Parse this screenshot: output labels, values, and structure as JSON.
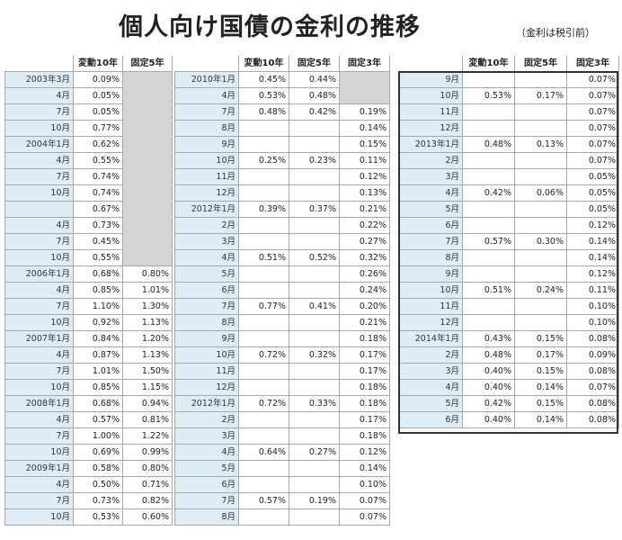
{
  "title": "個人向け国債の金利の推移",
  "note": "（金利は税引前）",
  "headers": {
    "t1": [
      "変動10年",
      "固定5年"
    ],
    "t2": [
      "変動10年",
      "固定5年",
      "固定3年"
    ],
    "t3": [
      "変動10年",
      "固定5年",
      "固定3年"
    ]
  },
  "tables": [
    {
      "columns": 2,
      "rows": [
        {
          "label": "2003年3月",
          "values": [
            "0.09%",
            ""
          ]
        },
        {
          "label": "4月",
          "values": [
            "0.05%",
            ""
          ]
        },
        {
          "label": "7月",
          "values": [
            "0.05%",
            ""
          ]
        },
        {
          "label": "10月",
          "values": [
            "0.77%",
            ""
          ]
        },
        {
          "label": "2004年1月",
          "values": [
            "0.62%",
            ""
          ]
        },
        {
          "label": "4月",
          "values": [
            "0.55%",
            ""
          ]
        },
        {
          "label": "7月",
          "values": [
            "0.74%",
            ""
          ]
        },
        {
          "label": "10月",
          "values": [
            "0.74%",
            ""
          ]
        },
        {
          "label": "",
          "values": [
            "0.67%",
            ""
          ]
        },
        {
          "label": "4月",
          "values": [
            "0.73%",
            ""
          ]
        },
        {
          "label": "7月",
          "values": [
            "0.45%",
            ""
          ]
        },
        {
          "label": "10月",
          "values": [
            "0.55%",
            ""
          ]
        },
        {
          "label": "2006年1月",
          "values": [
            "0.68%",
            "0.80%"
          ]
        },
        {
          "label": "4月",
          "values": [
            "0.85%",
            "1.01%"
          ]
        },
        {
          "label": "7月",
          "values": [
            "1.10%",
            "1.30%"
          ]
        },
        {
          "label": "10月",
          "values": [
            "0.92%",
            "1.13%"
          ]
        },
        {
          "label": "2007年1月",
          "values": [
            "0.84%",
            "1.20%"
          ]
        },
        {
          "label": "4月",
          "values": [
            "0.87%",
            "1.13%"
          ]
        },
        {
          "label": "7月",
          "values": [
            "1.01%",
            "1.50%"
          ]
        },
        {
          "label": "10月",
          "values": [
            "0.85%",
            "1.15%"
          ]
        },
        {
          "label": "2008年1月",
          "values": [
            "0.68%",
            "0.94%"
          ]
        },
        {
          "label": "4月",
          "values": [
            "0.57%",
            "0.81%"
          ]
        },
        {
          "label": "7月",
          "values": [
            "1.00%",
            "1.22%"
          ]
        },
        {
          "label": "10月",
          "values": [
            "0.69%",
            "0.99%"
          ]
        },
        {
          "label": "2009年1月",
          "values": [
            "0.58%",
            "0.80%"
          ]
        },
        {
          "label": "4月",
          "values": [
            "0.50%",
            "0.71%"
          ]
        },
        {
          "label": "7月",
          "values": [
            "0.73%",
            "0.82%"
          ]
        },
        {
          "label": "10月",
          "values": [
            "0.53%",
            "0.60%"
          ]
        }
      ]
    },
    {
      "columns": 3,
      "rows": [
        {
          "label": "2010年1月",
          "values": [
            "0.45%",
            "0.44%",
            ""
          ]
        },
        {
          "label": "4月",
          "values": [
            "0.53%",
            "0.48%",
            ""
          ]
        },
        {
          "label": "7月",
          "values": [
            "0.48%",
            "0.42%",
            "0.19%"
          ]
        },
        {
          "label": "8月",
          "values": [
            "",
            "",
            "0.14%"
          ]
        },
        {
          "label": "9月",
          "values": [
            "",
            "",
            "0.15%"
          ]
        },
        {
          "label": "10月",
          "values": [
            "0.25%",
            "0.23%",
            "0.11%"
          ]
        },
        {
          "label": "11月",
          "values": [
            "",
            "",
            "0.12%"
          ]
        },
        {
          "label": "12月",
          "values": [
            "",
            "",
            "0.13%"
          ]
        },
        {
          "label": "2012年1月",
          "values": [
            "0.39%",
            "0.37%",
            "0.21%"
          ]
        },
        {
          "label": "2月",
          "values": [
            "",
            "",
            "0.22%"
          ]
        },
        {
          "label": "3月",
          "values": [
            "",
            "",
            "0.27%"
          ]
        },
        {
          "label": "4月",
          "values": [
            "0.51%",
            "0.52%",
            "0.32%"
          ]
        },
        {
          "label": "5月",
          "values": [
            "",
            "",
            "0.26%"
          ]
        },
        {
          "label": "6月",
          "values": [
            "",
            "",
            "0.24%"
          ]
        },
        {
          "label": "7月",
          "values": [
            "0.77%",
            "0.41%",
            "0.20%"
          ]
        },
        {
          "label": "8月",
          "values": [
            "",
            "",
            "0.21%"
          ]
        },
        {
          "label": "9月",
          "values": [
            "",
            "",
            "0.18%"
          ]
        },
        {
          "label": "10月",
          "values": [
            "0.72%",
            "0.32%",
            "0.17%"
          ]
        },
        {
          "label": "11月",
          "values": [
            "",
            "",
            "0.17%"
          ]
        },
        {
          "label": "12月",
          "values": [
            "",
            "",
            "0.18%"
          ]
        },
        {
          "label": "2012年1月",
          "values": [
            "0.72%",
            "0.33%",
            "0.18%"
          ]
        },
        {
          "label": "2月",
          "values": [
            "",
            "",
            "0.17%"
          ]
        },
        {
          "label": "3月",
          "values": [
            "",
            "",
            "0.18%"
          ]
        },
        {
          "label": "4月",
          "values": [
            "0.64%",
            "0.27%",
            "0.12%"
          ]
        },
        {
          "label": "5月",
          "values": [
            "",
            "",
            "0.14%"
          ]
        },
        {
          "label": "6月",
          "values": [
            "",
            "",
            "0.10%"
          ]
        },
        {
          "label": "7月",
          "values": [
            "0.57%",
            "0.19%",
            "0.07%"
          ]
        },
        {
          "label": "8月",
          "values": [
            "",
            "",
            "0.07%"
          ]
        }
      ]
    },
    {
      "columns": 3,
      "rows": [
        {
          "label": "9月",
          "values": [
            "",
            "",
            "0.07%"
          ]
        },
        {
          "label": "10月",
          "values": [
            "0.53%",
            "0.17%",
            "0.07%"
          ]
        },
        {
          "label": "11月",
          "values": [
            "",
            "",
            "0.07%"
          ]
        },
        {
          "label": "12月",
          "values": [
            "",
            "",
            "0.07%"
          ]
        },
        {
          "label": "2013年1月",
          "values": [
            "0.48%",
            "0.13%",
            "0.07%"
          ]
        },
        {
          "label": "2月",
          "values": [
            "",
            "",
            "0.07%"
          ]
        },
        {
          "label": "3月",
          "values": [
            "",
            "",
            "0.05%"
          ]
        },
        {
          "label": "4月",
          "values": [
            "0.42%",
            "0.06%",
            "0.05%"
          ]
        },
        {
          "label": "5月",
          "values": [
            "",
            "",
            "0.05%"
          ]
        },
        {
          "label": "6月",
          "values": [
            "",
            "",
            "0.12%"
          ]
        },
        {
          "label": "7月",
          "values": [
            "0.57%",
            "0.30%",
            "0.14%"
          ]
        },
        {
          "label": "8月",
          "values": [
            "",
            "",
            "0.14%"
          ]
        },
        {
          "label": "9月",
          "values": [
            "",
            "",
            "0.12%"
          ]
        },
        {
          "label": "10月",
          "values": [
            "0.51%",
            "0.24%",
            "0.11%"
          ]
        },
        {
          "label": "11月",
          "values": [
            "",
            "",
            "0.10%"
          ]
        },
        {
          "label": "12月",
          "values": [
            "",
            "",
            "0.10%"
          ]
        },
        {
          "label": "2014年1月",
          "values": [
            "0.43%",
            "0.15%",
            "0.08%"
          ]
        },
        {
          "label": "2月",
          "values": [
            "0.48%",
            "0.17%",
            "0.09%"
          ]
        },
        {
          "label": "3月",
          "values": [
            "0.40%",
            "0.15%",
            "0.08%"
          ]
        },
        {
          "label": "4月",
          "values": [
            "0.40%",
            "0.14%",
            "0.07%"
          ]
        },
        {
          "label": "5月",
          "values": [
            "0.42%",
            "0.15%",
            "0.08%"
          ]
        },
        {
          "label": "6月",
          "values": [
            "0.40%",
            "0.14%",
            "0.08%"
          ]
        }
      ]
    }
  ],
  "colors": {
    "label_bg": "#deedf5",
    "gray_block": "#d4d4d4",
    "border": "#a8a8a8"
  }
}
